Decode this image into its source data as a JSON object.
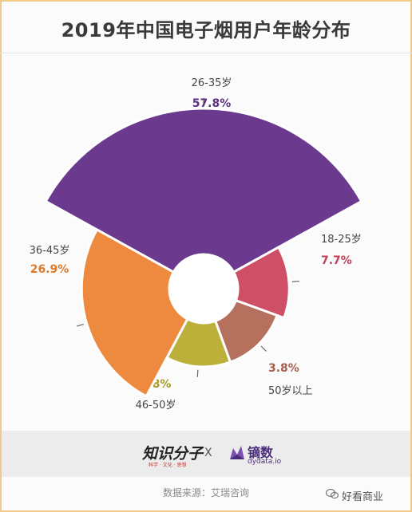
{
  "title": "2019年中国电子烟用户年龄分布",
  "chart_data": {
    "type": "pie",
    "variant": "nightingale-rose",
    "title": "2019年中国电子烟用户年龄分布",
    "slices": [
      {
        "label": "26-35岁",
        "value": 57.8,
        "display": "57.8%",
        "color": "#6b3a8e"
      },
      {
        "label": "18-25岁",
        "value": 7.7,
        "display": "7.7%",
        "color": "#cf5066"
      },
      {
        "label": "50岁以上",
        "value": 3.8,
        "display": "3.8%",
        "color": "#b5705e"
      },
      {
        "label": "46-50岁",
        "value": 3.8,
        "display": "3.8%",
        "color": "#bdb03a"
      },
      {
        "label": "36-45岁",
        "value": 26.9,
        "display": "26.9%",
        "color": "#ee8a3f"
      }
    ]
  },
  "footer": {
    "logo_left": "知识分子",
    "logo_left_sub": "科学 · 文化 · 思想",
    "separator": "X",
    "logo_right": "镝数",
    "logo_right_sub": "dydata.io",
    "source": "数据来源：艾瑞咨询"
  },
  "badge": {
    "text": "好看商业"
  },
  "colors": {
    "frame": "#f1c98a",
    "title": "#3a3a3a"
  }
}
